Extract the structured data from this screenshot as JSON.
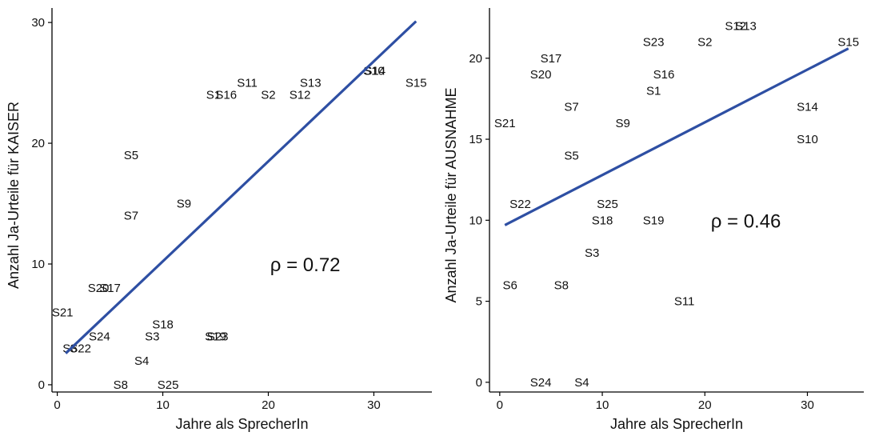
{
  "chart_data": [
    {
      "type": "scatter",
      "xlabel": "Jahre als SprecherIn",
      "ylabel": "Anzahl Ja-Urteile für KAISER",
      "xlim": [
        -0.5,
        35.5
      ],
      "ylim": [
        -0.6,
        31.2
      ],
      "xticks": [
        0,
        10,
        20,
        30
      ],
      "yticks": [
        0,
        10,
        20,
        30
      ],
      "grid": false,
      "annotation": "ρ = 0.72",
      "annotation_pos": [
        23.5,
        10
      ],
      "fit_line": {
        "x": [
          0.8,
          34
        ],
        "y": [
          2.6,
          30.1
        ],
        "color": "#2e4fa3"
      },
      "points": [
        {
          "label": "S21",
          "x": 0.5,
          "y": 6
        },
        {
          "label": "S6",
          "x": 1.2,
          "y": 3
        },
        {
          "label": "S22",
          "x": 2.2,
          "y": 3
        },
        {
          "label": "S24",
          "x": 4,
          "y": 4
        },
        {
          "label": "S20",
          "x": 3.9,
          "y": 8
        },
        {
          "label": "S17",
          "x": 5,
          "y": 8
        },
        {
          "label": "S8",
          "x": 6,
          "y": 0
        },
        {
          "label": "S25",
          "x": 10.5,
          "y": 0
        },
        {
          "label": "S4",
          "x": 8,
          "y": 2
        },
        {
          "label": "S3",
          "x": 9,
          "y": 4
        },
        {
          "label": "S18",
          "x": 10,
          "y": 5
        },
        {
          "label": "S5",
          "x": 7,
          "y": 19
        },
        {
          "label": "S7",
          "x": 7,
          "y": 14
        },
        {
          "label": "S9",
          "x": 12,
          "y": 15
        },
        {
          "label": "S19",
          "x": 15,
          "y": 4
        },
        {
          "label": "S23",
          "x": 15.2,
          "y": 4
        },
        {
          "label": "S1",
          "x": 14.8,
          "y": 24
        },
        {
          "label": "S16",
          "x": 16,
          "y": 24
        },
        {
          "label": "S11",
          "x": 18,
          "y": 25
        },
        {
          "label": "S2",
          "x": 20,
          "y": 24
        },
        {
          "label": "S12",
          "x": 23,
          "y": 24
        },
        {
          "label": "S13",
          "x": 24,
          "y": 25
        },
        {
          "label": "S10",
          "x": 30,
          "y": 26
        },
        {
          "label": "S14",
          "x": 30.1,
          "y": 26
        },
        {
          "label": "S15",
          "x": 34,
          "y": 25
        }
      ]
    },
    {
      "type": "scatter",
      "xlabel": "Jahre als SprecherIn",
      "ylabel": "Anzahl Ja-Urteile für AUSNAHME",
      "xlim": [
        -1,
        35.5
      ],
      "ylim": [
        -0.6,
        23.1
      ],
      "xticks": [
        0,
        10,
        20,
        30
      ],
      "yticks": [
        0,
        5,
        10,
        15,
        20
      ],
      "grid": false,
      "annotation": "ρ = 0.46",
      "annotation_pos": [
        24,
        10
      ],
      "fit_line": {
        "x": [
          0.5,
          34
        ],
        "y": [
          9.7,
          20.6
        ],
        "color": "#2e4fa3"
      },
      "points": [
        {
          "label": "S21",
          "x": 0.5,
          "y": 16
        },
        {
          "label": "S22",
          "x": 2,
          "y": 11
        },
        {
          "label": "S6",
          "x": 1,
          "y": 6
        },
        {
          "label": "S24",
          "x": 4,
          "y": 0
        },
        {
          "label": "S4",
          "x": 8,
          "y": 0
        },
        {
          "label": "S8",
          "x": 6,
          "y": 6
        },
        {
          "label": "S3",
          "x": 9,
          "y": 8
        },
        {
          "label": "S17",
          "x": 5,
          "y": 20
        },
        {
          "label": "S20",
          "x": 4,
          "y": 19
        },
        {
          "label": "S7",
          "x": 7,
          "y": 17
        },
        {
          "label": "S5",
          "x": 7,
          "y": 14
        },
        {
          "label": "S9",
          "x": 12,
          "y": 16
        },
        {
          "label": "S25",
          "x": 10.5,
          "y": 11
        },
        {
          "label": "S18",
          "x": 10,
          "y": 10
        },
        {
          "label": "S19",
          "x": 15,
          "y": 10
        },
        {
          "label": "S11",
          "x": 18,
          "y": 5
        },
        {
          "label": "S23",
          "x": 15,
          "y": 21
        },
        {
          "label": "S16",
          "x": 16,
          "y": 19
        },
        {
          "label": "S1",
          "x": 15,
          "y": 18
        },
        {
          "label": "S2",
          "x": 20,
          "y": 21
        },
        {
          "label": "S12",
          "x": 23,
          "y": 22
        },
        {
          "label": "S13",
          "x": 24,
          "y": 22
        },
        {
          "label": "S14",
          "x": 30,
          "y": 17
        },
        {
          "label": "S10",
          "x": 30,
          "y": 15
        },
        {
          "label": "S15",
          "x": 34,
          "y": 21
        }
      ]
    }
  ]
}
